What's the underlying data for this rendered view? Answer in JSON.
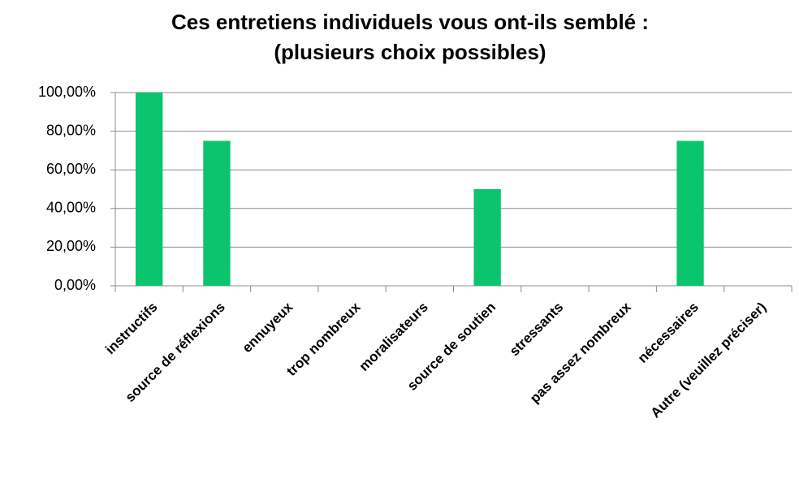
{
  "chart_data": {
    "type": "bar",
    "title": [
      "Ces entretiens individuels vous ont-ils semblé :",
      "(plusieurs choix possibles)"
    ],
    "categories": [
      "instructifs",
      "source de réflexions",
      "ennuyeux",
      "trop nombreux",
      "moralisateurs",
      "source de soutien",
      "stressants",
      "pas assez nombreux",
      "nécessaires",
      "Autre (veuillez préciser)"
    ],
    "values": [
      100,
      75,
      0,
      0,
      0,
      50,
      0,
      0,
      75,
      0
    ],
    "color": "#0ac46e",
    "ylim": [
      0,
      100
    ],
    "yticks": [
      {
        "value": 0,
        "label": "0,00%"
      },
      {
        "value": 20,
        "label": "20,00%"
      },
      {
        "value": 40,
        "label": "40,00%"
      },
      {
        "value": 60,
        "label": "60,00%"
      },
      {
        "value": 80,
        "label": "80,00%"
      },
      {
        "value": 100,
        "label": "100,00%"
      }
    ],
    "grid": true
  }
}
